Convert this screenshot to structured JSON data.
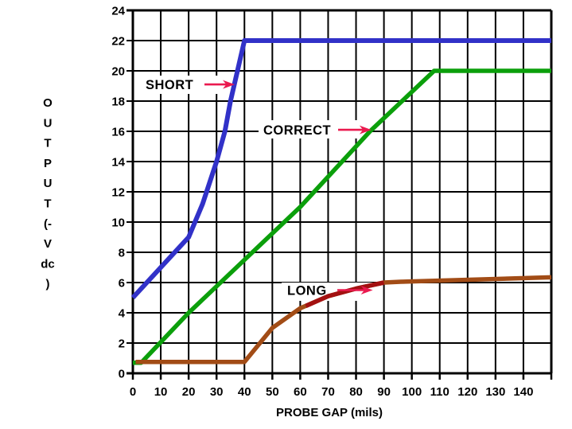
{
  "chart_data": {
    "type": "line",
    "title": "",
    "xlabel": "PROBE GAP (mils)",
    "ylabel": "OUTPUT (-V dc)",
    "ylabel_stacked": [
      "O",
      "U",
      "T",
      "P",
      "U",
      "T",
      "(-",
      "V",
      "dc",
      ")"
    ],
    "xlim": [
      0,
      150
    ],
    "ylim": [
      0,
      24
    ],
    "x_tick_step": 10,
    "y_tick_step": 2,
    "x_tick_labels": [
      "0",
      "10",
      "20",
      "30",
      "40",
      "50",
      "60",
      "70",
      "80",
      "90",
      "100",
      "110",
      "120",
      "130",
      "140"
    ],
    "y_tick_labels": [
      "0",
      "2",
      "4",
      "6",
      "8",
      "10",
      "12",
      "14",
      "16",
      "18",
      "20",
      "22",
      "24"
    ],
    "grid": "full black grid, vertical every 10 mils, horizontal every 2 V",
    "background_color": "#ffffff",
    "grid_color": "#000000",
    "annotation_arrow_color": "#EA1A4F",
    "series": [
      {
        "name": "CORRECT",
        "color": "#0B9F0B",
        "points": [
          [
            0,
            0.7
          ],
          [
            3,
            0.7
          ],
          [
            20,
            4
          ],
          [
            60,
            11
          ],
          [
            85,
            16
          ],
          [
            108,
            20
          ],
          [
            150,
            20
          ]
        ]
      },
      {
        "name": "LONG",
        "color": "#A24C16",
        "points": [
          [
            1,
            0.75
          ],
          [
            40,
            0.75
          ],
          [
            50,
            3
          ],
          [
            60,
            4.3
          ],
          [
            70,
            5.1
          ],
          [
            80,
            5.6
          ],
          [
            90,
            6
          ],
          [
            96,
            6.05
          ],
          [
            150,
            6.35
          ]
        ],
        "overlay": {
          "color": "#A31111",
          "points": [
            [
              62,
              4.45
            ],
            [
              70,
              5.1
            ],
            [
              80,
              5.6
            ],
            [
              90,
              6
            ]
          ]
        }
      },
      {
        "name": "SHORT",
        "color": "#3131C8",
        "points": [
          [
            0,
            5
          ],
          [
            10,
            7
          ],
          [
            20,
            9
          ],
          [
            25,
            11.2
          ],
          [
            30,
            14
          ],
          [
            33,
            16
          ],
          [
            35,
            18
          ],
          [
            37.5,
            20
          ],
          [
            40,
            22
          ],
          [
            150,
            22
          ]
        ]
      }
    ],
    "annotations": [
      {
        "text": "SHORT",
        "tip": [
          36.5,
          19.1
        ]
      },
      {
        "text": "CORRECT",
        "tip": [
          85.5,
          16.1
        ]
      },
      {
        "text": "LONG",
        "tip": [
          86,
          5.5
        ]
      }
    ]
  }
}
